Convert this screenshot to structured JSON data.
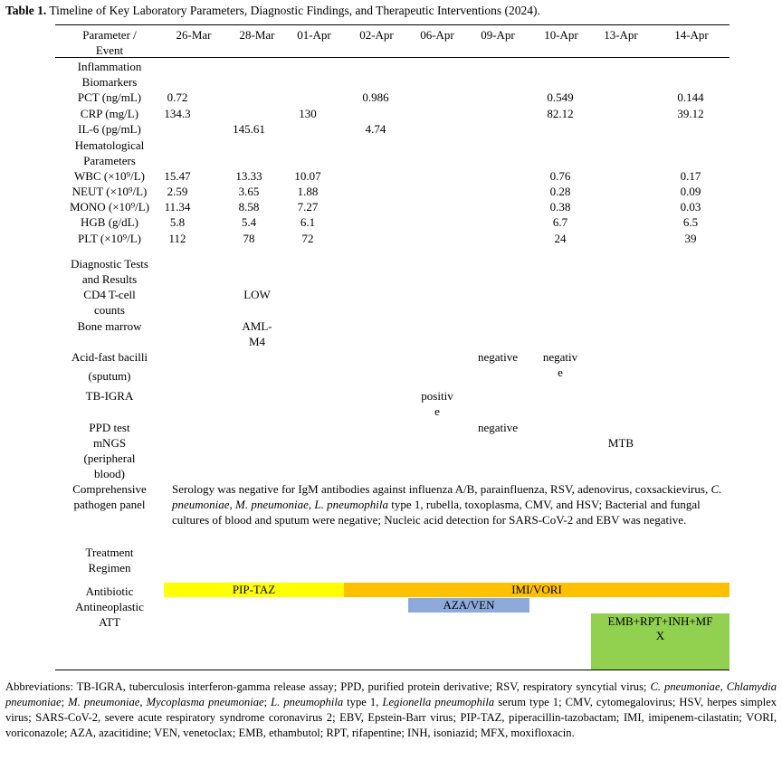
{
  "caption": {
    "label": "Table 1.",
    "text": " Timeline of Key Laboratory Parameters, Diagnostic Findings, and Therapeutic Interventions (2024)."
  },
  "header": {
    "first": [
      "Parameter /",
      "Event"
    ],
    "dates": [
      "26-Mar",
      "28-Mar",
      "01-Apr",
      "02-Apr",
      "06-Apr",
      "09-Apr",
      "10-Apr",
      "13-Apr",
      "14-Apr"
    ]
  },
  "sections": {
    "inflammation": [
      "Inflammation",
      "Biomarkers"
    ],
    "hematological": [
      "Hematological",
      "Parameters"
    ],
    "diagnostic": [
      "Diagnostic Tests",
      "and Results"
    ],
    "treatment": [
      "Treatment",
      "Regimen"
    ]
  },
  "rows": {
    "pct": {
      "label": "PCT (ng/mL)",
      "v": [
        "0.72",
        "",
        "",
        "0.986",
        "",
        "",
        "0.549",
        "",
        "0.144"
      ]
    },
    "crp": {
      "label": "CRP (mg/L)",
      "v": [
        "134.3",
        "",
        "130",
        "",
        "",
        "",
        "82.12",
        "",
        "39.12"
      ]
    },
    "il6": {
      "label": "IL-6 (pg/mL)",
      "v": [
        "",
        "145.61",
        "",
        "4.74",
        "",
        "",
        "",
        "",
        ""
      ]
    },
    "wbc": {
      "label": "WBC (×10⁹/L)",
      "v": [
        "15.47",
        "13.33",
        "10.07",
        "",
        "",
        "",
        "0.76",
        "",
        "0.17"
      ]
    },
    "neut": {
      "label": "NEUT (×10⁹/L)",
      "v": [
        "2.59",
        "3.65",
        "1.88",
        "",
        "",
        "",
        "0.28",
        "",
        "0.09"
      ]
    },
    "mono": {
      "label": "MONO (×10⁹/L)",
      "v": [
        "11.34",
        "8.58",
        "7.27",
        "",
        "",
        "",
        "0.38",
        "",
        "0.03"
      ]
    },
    "hgb": {
      "label": "HGB (g/dL)",
      "v": [
        "5.8",
        "5.4",
        "6.1",
        "",
        "",
        "",
        "6.7",
        "",
        "6.5"
      ]
    },
    "plt": {
      "label": "PLT (×10⁹/L)",
      "v": [
        "112",
        "78",
        "72",
        "",
        "",
        "",
        "24",
        "",
        "39"
      ]
    }
  },
  "diag": {
    "cd4": {
      "label": [
        "CD4 T-cell",
        "counts"
      ],
      "value": "LOW"
    },
    "bm": {
      "label": "Bone marrow",
      "value": [
        "AML-",
        "M4"
      ]
    },
    "afb": {
      "label": [
        "Acid-fast bacilli",
        "(sputum)"
      ],
      "value1": "negative",
      "value2": [
        "negativ",
        "e"
      ]
    },
    "igra": {
      "label": "TB-IGRA",
      "value": [
        "positiv",
        "e"
      ]
    },
    "ppd": {
      "label": "PPD test",
      "value": "negative"
    },
    "mngs": {
      "label": [
        "mNGS",
        "(peripheral",
        "blood)"
      ],
      "value": "MTB"
    }
  },
  "panel": {
    "label": [
      "Comprehensive",
      "pathogen panel"
    ],
    "parts": [
      {
        "t": "Serology was negative for IgM antibodies against influenza A/B, parainfluenza, RSV, adenovirus, coxsackievirus, "
      },
      {
        "t": "C. pneumoniae",
        "i": true
      },
      {
        "t": ", "
      },
      {
        "t": "M. pneumoniae",
        "i": true
      },
      {
        "t": ", "
      },
      {
        "t": "L. pneumophila",
        "i": true
      },
      {
        "t": " type 1, rubella, toxoplasma, CMV, and HSV; Bacterial and fungal cultures of blood and sputum were negative; Nucleic acid detection for SARS-CoV-2 and EBV was negative."
      }
    ]
  },
  "treatment": {
    "antibiotic": {
      "label": "Antibiotic",
      "bar1": "PIP-TAZ",
      "bar2": "IMI/VORI"
    },
    "antineoplastic": {
      "label": "Antineoplastic",
      "bar": "AZA/VEN"
    },
    "att": {
      "label": "ATT",
      "bar": [
        "EMB+RPT+INH+MF",
        "X"
      ]
    }
  },
  "colors": {
    "pip_taz": "#ffff00",
    "imi_vori": "#ffc000",
    "aza_ven": "#8eaadb",
    "att": "#92d050"
  },
  "abbreviations": [
    {
      "t": "Abbreviations: TB-IGRA, tuberculosis interferon-gamma release assay; PPD, purified protein derivative; RSV, respiratory syncytial virus; "
    },
    {
      "t": "C. pneumoniae",
      "i": true
    },
    {
      "t": ", "
    },
    {
      "t": "Chlamydia pneumoniae",
      "i": true
    },
    {
      "t": "; "
    },
    {
      "t": "M. pneumoniae",
      "i": true
    },
    {
      "t": ", "
    },
    {
      "t": "Mycoplasma pneumoniae",
      "i": true
    },
    {
      "t": "; "
    },
    {
      "t": "L. pneumophila",
      "i": true
    },
    {
      "t": " type 1, "
    },
    {
      "t": "Legionella pneumophila",
      "i": true
    },
    {
      "t": " serum type 1; CMV, cytomegalovirus; HSV, herpes simplex virus; SARS-CoV-2, severe acute respiratory syndrome coronavirus 2; EBV, Epstein-Barr virus; PIP-TAZ, piperacillin-tazobactam; IMI, imipenem-cilastatin; VORI, voriconazole; AZA, azacitidine; VEN, venetoclax; EMB, ethambutol; RPT, rifapentine; INH, isoniazid; MFX, moxifloxacin."
    }
  ]
}
